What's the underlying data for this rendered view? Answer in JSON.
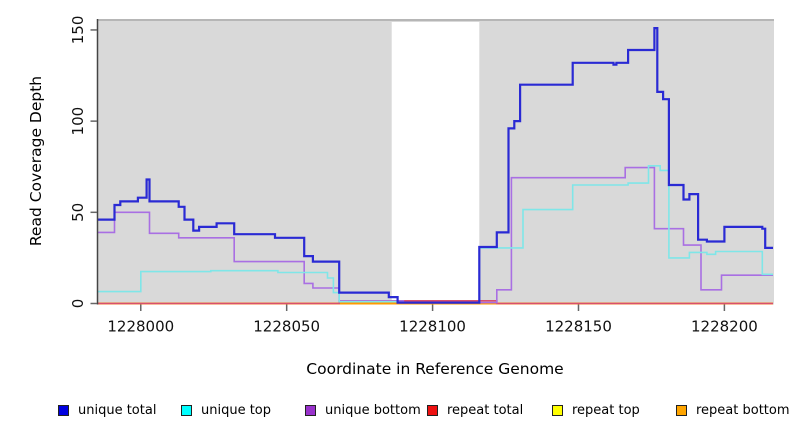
{
  "chart_data": {
    "type": "line",
    "subtype": "step-coverage",
    "title": "",
    "xlabel": "Coordinate in Reference Genome",
    "ylabel": "Read Coverage Depth",
    "xlim": [
      1227985,
      1228217
    ],
    "ylim": [
      0,
      156
    ],
    "x_ticks": [
      1228000,
      1228050,
      1228100,
      1228150,
      1228200
    ],
    "y_ticks": [
      0,
      50,
      100,
      150
    ],
    "grid": "off",
    "plot_background": "#d9d9d9",
    "gap_region": {
      "x_start": 1228086,
      "x_end": 1228116,
      "color": "#ffffff"
    },
    "series": [
      {
        "name": "repeat top",
        "color": "#ffff00",
        "width": 1.6,
        "points": [
          [
            1227985,
            0
          ]
        ]
      },
      {
        "name": "repeat bottom",
        "color": "#ff9a00",
        "width": 2,
        "points": [
          [
            1227985,
            0
          ]
        ]
      },
      {
        "name": "repeat total",
        "color": "#d94f6e",
        "width": 1.6,
        "points": [
          [
            1227985,
            0
          ],
          [
            1228068,
            1.5
          ],
          [
            1228122,
            0
          ]
        ]
      },
      {
        "name": "unique bottom",
        "color": "#a96fe3",
        "width": 1.6,
        "points": [
          [
            1227985,
            39
          ],
          [
            1227991,
            50
          ],
          [
            1228003,
            38.5
          ],
          [
            1228013,
            36
          ],
          [
            1228032,
            23
          ],
          [
            1228056,
            11
          ],
          [
            1228059,
            8.5
          ],
          [
            1228068,
            1.4
          ],
          [
            1228090,
            0.5
          ],
          [
            1228122,
            7.5
          ],
          [
            1228127,
            69
          ],
          [
            1228166,
            74.5
          ],
          [
            1228176,
            41
          ],
          [
            1228186,
            32
          ],
          [
            1228192,
            7.5
          ],
          [
            1228199,
            15.5
          ]
        ]
      },
      {
        "name": "unique top",
        "color": "#7fe6e8",
        "width": 1.6,
        "points": [
          [
            1227985,
            6.5
          ],
          [
            1228000,
            17.5
          ],
          [
            1228024,
            18
          ],
          [
            1228047,
            17
          ],
          [
            1228064,
            14
          ],
          [
            1228066,
            6
          ],
          [
            1228068,
            1
          ],
          [
            1228088,
            0.5
          ],
          [
            1228116,
            30.5
          ],
          [
            1228131,
            51.5
          ],
          [
            1228148,
            65
          ],
          [
            1228167,
            66
          ],
          [
            1228174,
            75.5
          ],
          [
            1228178,
            73
          ],
          [
            1228181,
            25
          ],
          [
            1228188,
            28
          ],
          [
            1228194,
            27
          ],
          [
            1228197,
            28.5
          ],
          [
            1228213,
            16
          ]
        ]
      },
      {
        "name": "unique total",
        "color": "#2a2ad4",
        "width": 2.2,
        "points": [
          [
            1227985,
            46
          ],
          [
            1227991,
            54
          ],
          [
            1227993,
            56
          ],
          [
            1227999,
            58
          ],
          [
            1228002,
            68
          ],
          [
            1228003,
            56
          ],
          [
            1228013,
            53
          ],
          [
            1228015,
            46
          ],
          [
            1228018,
            40
          ],
          [
            1228020,
            42
          ],
          [
            1228026,
            44
          ],
          [
            1228032,
            38
          ],
          [
            1228046,
            36
          ],
          [
            1228056,
            26
          ],
          [
            1228059,
            23
          ],
          [
            1228068,
            6
          ],
          [
            1228085,
            3.5
          ],
          [
            1228088,
            0.5
          ],
          [
            1228116,
            31
          ],
          [
            1228122,
            39
          ],
          [
            1228126,
            96
          ],
          [
            1228128,
            100
          ],
          [
            1228130,
            120
          ],
          [
            1228148,
            132
          ],
          [
            1228162,
            131
          ],
          [
            1228163,
            132
          ],
          [
            1228167,
            139
          ],
          [
            1228176,
            151
          ],
          [
            1228177,
            116
          ],
          [
            1228179,
            112
          ],
          [
            1228181,
            65
          ],
          [
            1228186,
            57
          ],
          [
            1228188,
            60
          ],
          [
            1228191,
            35
          ],
          [
            1228194,
            34
          ],
          [
            1228200,
            42
          ],
          [
            1228213,
            41
          ],
          [
            1228214,
            30.5
          ]
        ]
      }
    ]
  },
  "axes": {
    "x_label": "Coordinate in Reference Genome",
    "y_label": "Read Coverage Depth"
  },
  "legend": {
    "items": [
      {
        "label": "unique total",
        "color": "#0000e0"
      },
      {
        "label": "unique top",
        "color": "#00ffff"
      },
      {
        "label": "unique bottom",
        "color": "#9932cc"
      },
      {
        "label": "repeat total",
        "color": "#ee1111"
      },
      {
        "label": "repeat top",
        "color": "#ffff00"
      },
      {
        "label": "repeat bottom",
        "color": "#ffa500"
      }
    ]
  }
}
